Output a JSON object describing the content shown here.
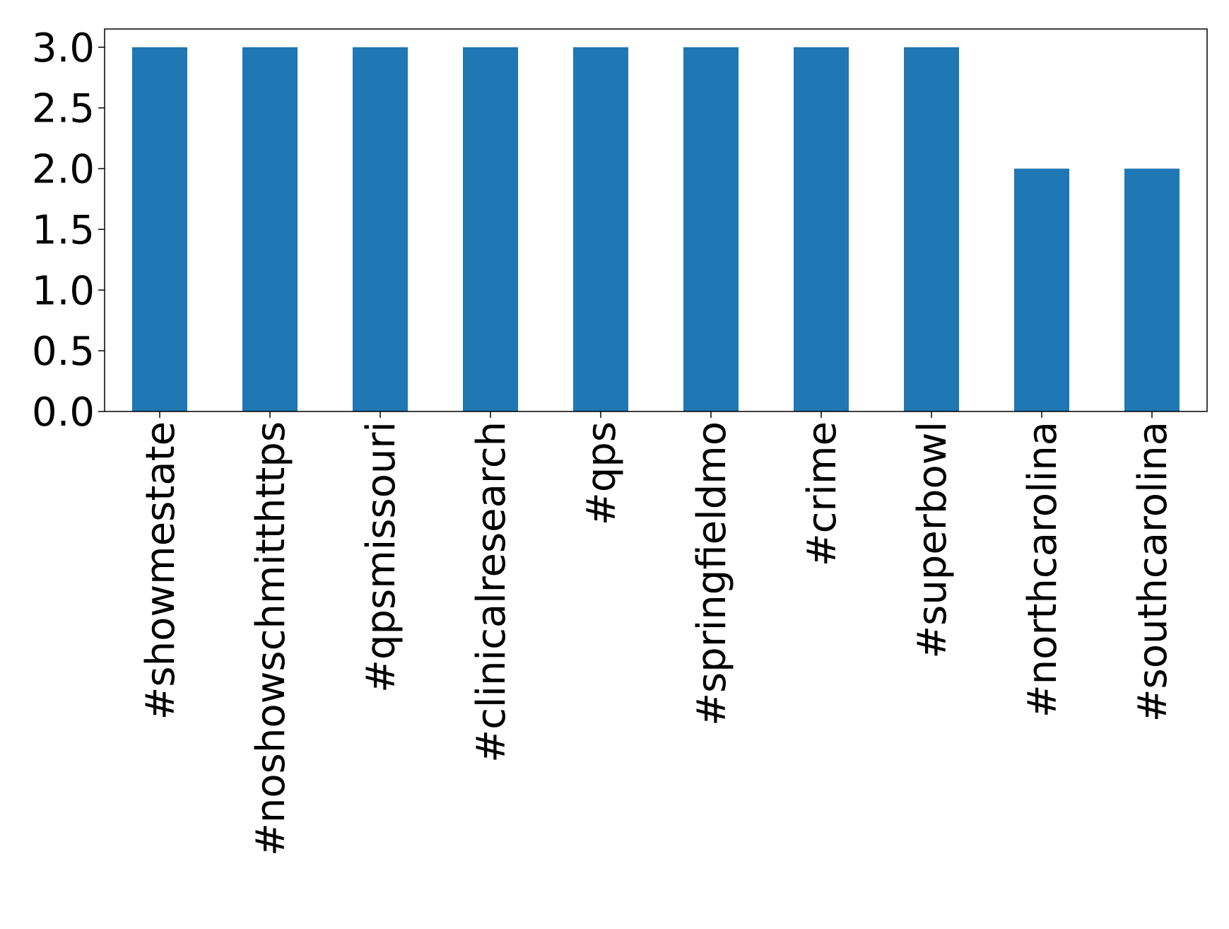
{
  "chart_data": {
    "type": "bar",
    "categories": [
      "#showmestate",
      "#noshowschmitthttps",
      "#qpsmissouri",
      "#clinicalresearch",
      "#qps",
      "#springfieldmo",
      "#crime",
      "#superbowl",
      "#northcarolina",
      "#southcarolina"
    ],
    "values": [
      3,
      3,
      3,
      3,
      3,
      3,
      3,
      3,
      2,
      2
    ],
    "color": "#1f77b4",
    "ylim": [
      0,
      3.15
    ],
    "yticks": [
      {
        "value": 0,
        "label": "0.0"
      },
      {
        "value": 0.5,
        "label": "0.5"
      },
      {
        "value": 1,
        "label": "1.0"
      },
      {
        "value": 1.5,
        "label": "1.5"
      },
      {
        "value": 2,
        "label": "2.0"
      },
      {
        "value": 2.5,
        "label": "2.5"
      },
      {
        "value": 3,
        "label": "3.0"
      }
    ],
    "grid": false
  }
}
